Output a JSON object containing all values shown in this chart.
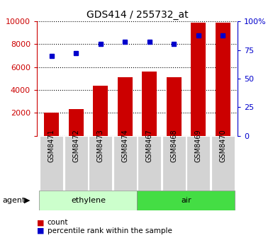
{
  "title": "GDS414 / 255732_at",
  "samples": [
    "GSM8471",
    "GSM8472",
    "GSM8473",
    "GSM8474",
    "GSM8467",
    "GSM8468",
    "GSM8469",
    "GSM8470"
  ],
  "counts": [
    2000,
    2300,
    4400,
    5100,
    5600,
    5100,
    9900,
    9900
  ],
  "percentiles": [
    70,
    72,
    80,
    82,
    82,
    80,
    88,
    88
  ],
  "groups": [
    {
      "label": "ethylene",
      "start": 0,
      "end": 3,
      "color": "#ccffcc"
    },
    {
      "label": "air",
      "start": 4,
      "end": 7,
      "color": "#44dd44"
    }
  ],
  "agent_label": "agent",
  "bar_color": "#cc0000",
  "dot_color": "#0000cc",
  "tick_label_color_left": "#cc0000",
  "tick_label_color_right": "#0000cc",
  "ylim_left": [
    0,
    10000
  ],
  "ylim_right": [
    0,
    100
  ],
  "yticks_left": [
    0,
    2000,
    4000,
    6000,
    8000,
    10000
  ],
  "yticks_right": [
    0,
    25,
    50,
    75,
    100
  ],
  "ytick_labels_left": [
    "",
    "2000",
    "4000",
    "6000",
    "8000",
    "10000"
  ],
  "ytick_labels_right": [
    "0",
    "25",
    "50",
    "75",
    "100%"
  ],
  "legend_count": "count",
  "legend_percentile": "percentile rank within the sample",
  "sample_box_color": "#d3d3d3",
  "bg_color": "#ffffff"
}
